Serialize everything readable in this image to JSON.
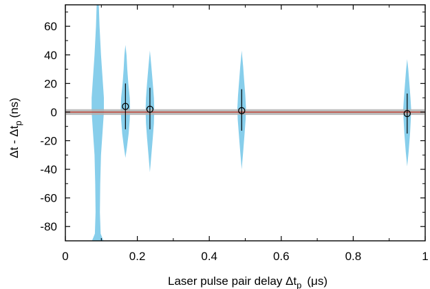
{
  "chart_data": {
    "type": "violin",
    "xlabel_main": "Laser pulse pair delay Δt",
    "xlabel_sub": "p",
    "xlabel_unit": "(μs)",
    "ylabel_main": "Δt - Δt",
    "ylabel_sub": "p",
    "ylabel_unit": "(ns)",
    "xlim": [
      0,
      1
    ],
    "ylim": [
      -90,
      75
    ],
    "xticks": [
      0,
      0.2,
      0.4,
      0.6,
      0.8,
      1
    ],
    "xtick_labels": [
      "0",
      "0.2",
      "0.4",
      "0.6",
      "0.8",
      "1"
    ],
    "yticks": [
      -80,
      -60,
      -40,
      -20,
      0,
      20,
      40,
      60
    ],
    "ytick_labels": [
      "-80",
      "-60",
      "-40",
      "-20",
      "0",
      "20",
      "40",
      "60"
    ],
    "reference_line": {
      "y": 0,
      "band": [
        -2,
        2
      ],
      "line_color": "#c0392b",
      "band_color": "#b0b0b0"
    },
    "violin_color": "#87ceeb",
    "violins": [
      {
        "x": 0.09,
        "profile": [
          [
            -90,
            0.016
          ],
          [
            -85,
            0.008
          ],
          [
            -70,
            0.006
          ],
          [
            -50,
            0.007
          ],
          [
            -30,
            0.009
          ],
          [
            -15,
            0.013
          ],
          [
            0,
            0.017
          ],
          [
            10,
            0.017
          ],
          [
            25,
            0.013
          ],
          [
            40,
            0.009
          ],
          [
            60,
            0.005
          ],
          [
            75,
            0.003
          ]
        ]
      },
      {
        "x": 0.167,
        "profile": [
          [
            -32,
            0.0
          ],
          [
            -25,
            0.004
          ],
          [
            -15,
            0.009
          ],
          [
            -5,
            0.012
          ],
          [
            3,
            0.013
          ],
          [
            10,
            0.012
          ],
          [
            20,
            0.008
          ],
          [
            30,
            0.005
          ],
          [
            40,
            0.003
          ],
          [
            47,
            0.0
          ]
        ]
      },
      {
        "x": 0.235,
        "profile": [
          [
            -42,
            0.0
          ],
          [
            -30,
            0.004
          ],
          [
            -18,
            0.008
          ],
          [
            -8,
            0.011
          ],
          [
            2,
            0.012
          ],
          [
            10,
            0.011
          ],
          [
            20,
            0.008
          ],
          [
            32,
            0.004
          ],
          [
            43,
            0.0
          ]
        ]
      },
      {
        "x": 0.49,
        "profile": [
          [
            -40,
            0.0
          ],
          [
            -28,
            0.004
          ],
          [
            -15,
            0.008
          ],
          [
            -5,
            0.011
          ],
          [
            3,
            0.012
          ],
          [
            12,
            0.01
          ],
          [
            22,
            0.007
          ],
          [
            32,
            0.004
          ],
          [
            43,
            0.0
          ]
        ]
      },
      {
        "x": 0.95,
        "profile": [
          [
            -38,
            0.0
          ],
          [
            -28,
            0.004
          ],
          [
            -15,
            0.008
          ],
          [
            -5,
            0.01
          ],
          [
            2,
            0.011
          ],
          [
            10,
            0.009
          ],
          [
            20,
            0.006
          ],
          [
            30,
            0.003
          ],
          [
            37,
            0.0
          ]
        ]
      }
    ],
    "points": [
      {
        "x": 0.167,
        "y": 4,
        "err_low": -12,
        "err_high": 20
      },
      {
        "x": 0.235,
        "y": 2,
        "err_low": -12,
        "err_high": 17
      },
      {
        "x": 0.49,
        "y": 1,
        "err_low": -13,
        "err_high": 16
      },
      {
        "x": 0.95,
        "y": -1,
        "err_low": -15,
        "err_high": 13
      }
    ]
  }
}
